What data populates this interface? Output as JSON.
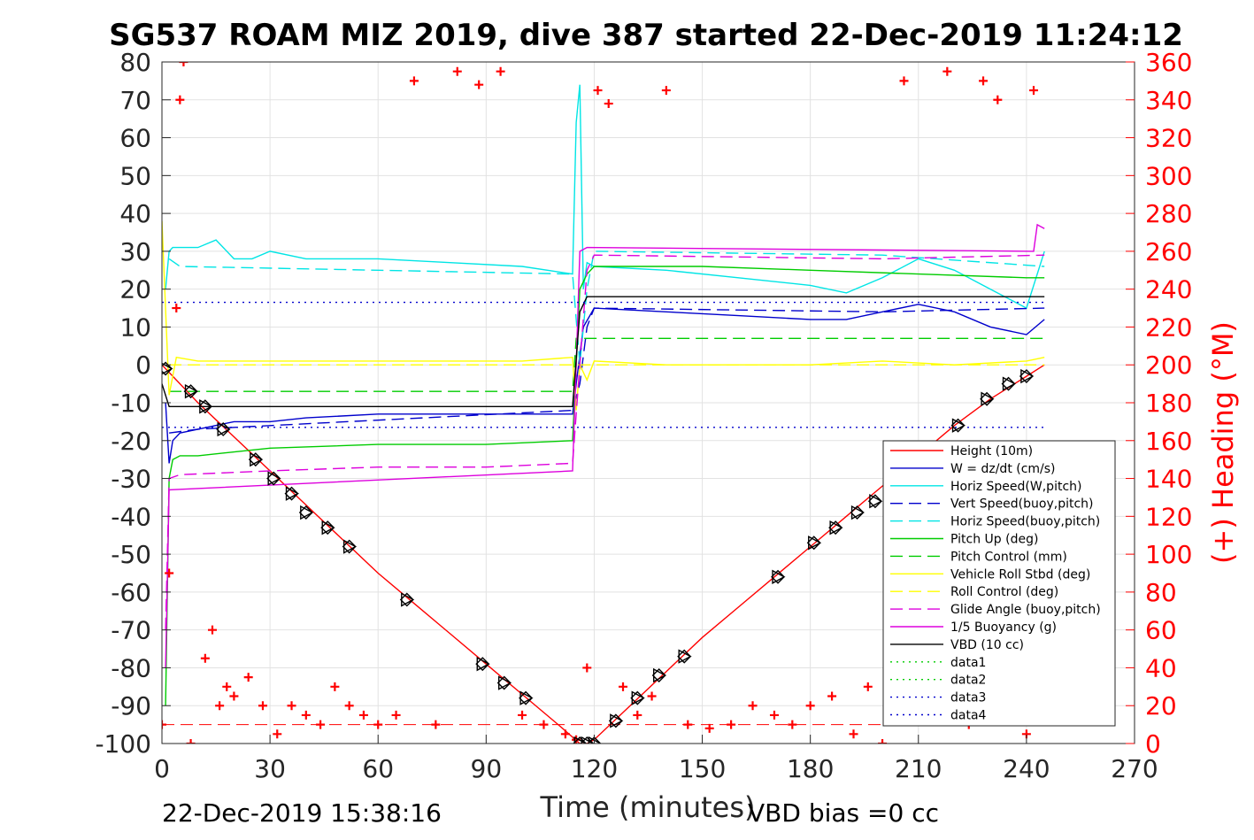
{
  "chart_data": {
    "type": "line",
    "title": "SG537 ROAM MIZ 2019, dive 387 started 22-Dec-2019 11:24:12",
    "xlabel": "Time (minutes)",
    "ylabel_left": "",
    "ylabel_right": "(+) Heading (°M)",
    "footer_left": "22-Dec-2019 15:38:16",
    "footer_right": "VBD bias =0 cc",
    "xlim": [
      0,
      270
    ],
    "ylim_left": [
      -100,
      80
    ],
    "ylim_right": [
      0,
      360
    ],
    "xticks": [
      0,
      30,
      60,
      90,
      120,
      150,
      180,
      210,
      240,
      270
    ],
    "yticks_left": [
      80,
      70,
      60,
      50,
      40,
      30,
      20,
      10,
      0,
      -10,
      -20,
      -30,
      -40,
      -50,
      -60,
      -70,
      -80,
      -90,
      -100
    ],
    "yticks_right": [
      360,
      340,
      320,
      300,
      280,
      260,
      240,
      220,
      200,
      180,
      160,
      140,
      120,
      100,
      80,
      60,
      40,
      20,
      0
    ],
    "grid": true,
    "legend_position": "lower-right",
    "series": [
      {
        "name": "Height (10m)",
        "color": "#ff0000",
        "style": "solid",
        "x": [
          0,
          10,
          20,
          30,
          40,
          50,
          60,
          70,
          80,
          90,
          100,
          110,
          116,
          118,
          120,
          130,
          140,
          150,
          160,
          170,
          180,
          190,
          200,
          210,
          220,
          230,
          240,
          245
        ],
        "y": [
          0,
          -10,
          -19,
          -28,
          -37,
          -46,
          -55,
          -63,
          -71,
          -79,
          -87,
          -95,
          -100,
          -100,
          -99,
          -90,
          -81,
          -72,
          -64,
          -56,
          -48,
          -40,
          -32,
          -24,
          -16,
          -9,
          -3,
          0
        ]
      },
      {
        "name": "W = dz/dt (cm/s)",
        "color": "#0000cc",
        "style": "solid",
        "x": [
          1,
          2,
          3,
          5,
          10,
          20,
          30,
          40,
          60,
          80,
          100,
          114,
          115,
          117,
          120,
          140,
          160,
          180,
          190,
          200,
          210,
          220,
          230,
          240,
          245
        ],
        "y": [
          -10,
          -26,
          -20,
          -18,
          -17,
          -15,
          -15,
          -14,
          -13,
          -13,
          -13,
          -13,
          -5,
          10,
          15,
          14,
          13,
          12,
          12,
          14,
          16,
          14,
          10,
          8,
          12
        ]
      },
      {
        "name": "Horiz Speed(W,pitch)",
        "color": "#00e5e5",
        "style": "solid",
        "x": [
          1,
          2,
          3,
          10,
          15,
          20,
          25,
          30,
          40,
          60,
          80,
          100,
          114,
          115,
          116,
          117,
          118,
          120,
          140,
          160,
          180,
          190,
          200,
          210,
          220,
          230,
          240,
          245
        ],
        "y": [
          20,
          30,
          31,
          31,
          33,
          28,
          28,
          30,
          28,
          28,
          27,
          26,
          24,
          64,
          74,
          20,
          27,
          26,
          25,
          23,
          21,
          19,
          23,
          28,
          25,
          20,
          15,
          30
        ]
      },
      {
        "name": "Vert Speed(buoy,pitch)",
        "color": "#0000cc",
        "style": "dashed",
        "x": [
          2,
          10,
          114,
          116,
          118,
          120,
          200,
          245
        ],
        "y": [
          -18,
          -17,
          -12,
          -5,
          10,
          15,
          14,
          15
        ]
      },
      {
        "name": "Horiz Speed(buoy,pitch)",
        "color": "#00e5e5",
        "style": "dashed",
        "x": [
          2,
          5,
          60,
          114,
          116,
          118,
          120,
          200,
          245
        ],
        "y": [
          28,
          26,
          25,
          24,
          0,
          20,
          30,
          29,
          26
        ]
      },
      {
        "name": "Pitch Up (deg)",
        "color": "#00cc00",
        "style": "solid",
        "x": [
          1,
          2,
          3,
          5,
          10,
          30,
          60,
          90,
          114,
          116,
          118,
          120,
          150,
          180,
          210,
          240,
          245
        ],
        "y": [
          -90,
          -30,
          -25,
          -24,
          -24,
          -22,
          -21,
          -21,
          -20,
          20,
          24,
          26,
          26,
          25,
          24,
          23,
          23
        ]
      },
      {
        "name": "Pitch Control (mm)",
        "color": "#00cc00",
        "style": "dashed",
        "x": [
          2,
          114,
          115,
          245
        ],
        "y": [
          -7,
          -7,
          7,
          7
        ]
      },
      {
        "name": "Vehicle Roll Stbd (deg)",
        "color": "#ffff00",
        "style": "solid",
        "x": [
          0,
          2,
          4,
          10,
          20,
          40,
          60,
          80,
          100,
          114,
          115,
          116,
          118,
          120,
          140,
          160,
          180,
          200,
          220,
          240,
          245
        ],
        "y": [
          38,
          -8,
          2,
          1,
          1,
          1,
          1,
          1,
          1,
          2,
          -12,
          0,
          -4,
          1,
          0,
          0,
          0,
          1,
          0,
          1,
          2
        ]
      },
      {
        "name": "Roll Control (deg)",
        "color": "#ffff00",
        "style": "dashed",
        "x": [
          2,
          114,
          115,
          245
        ],
        "y": [
          0,
          0,
          0,
          0
        ]
      },
      {
        "name": "Glide Angle (buoy,pitch)",
        "color": "#dd00dd",
        "style": "dashed",
        "x": [
          1,
          2,
          5,
          30,
          60,
          90,
          114,
          116,
          118,
          120,
          200,
          245
        ],
        "y": [
          -70,
          -30,
          -29,
          -28,
          -27,
          -27,
          -26,
          0,
          25,
          29,
          28,
          29
        ]
      },
      {
        "name": "1/5 Buoyancy (g)",
        "color": "#dd00dd",
        "style": "solid",
        "x": [
          1,
          2,
          114,
          115,
          116,
          118,
          242,
          243,
          245
        ],
        "y": [
          -80,
          -33,
          -28,
          0,
          30,
          31,
          30,
          37,
          36
        ]
      },
      {
        "name": "VBD (10 cc)",
        "color": "#000000",
        "style": "solid",
        "x": [
          0,
          2,
          3,
          114,
          116,
          118,
          245
        ],
        "y": [
          -5,
          -11,
          -11,
          -11,
          14,
          18,
          18
        ]
      },
      {
        "name": "data1",
        "color": "#00cc00",
        "style": "dotted",
        "x": [],
        "y": []
      },
      {
        "name": "data2",
        "color": "#00cc00",
        "style": "dotted",
        "x": [],
        "y": []
      },
      {
        "name": "data3",
        "color": "#0000cc",
        "style": "dotted",
        "x": [
          0,
          245
        ],
        "y": [
          16.5,
          16.5
        ]
      },
      {
        "name": "data4",
        "color": "#0000cc",
        "style": "dotted",
        "x": [
          0,
          245
        ],
        "y": [
          -16.5,
          -16.5
        ]
      }
    ],
    "heading": {
      "color": "#ff0000",
      "axis": "right",
      "marker": "+",
      "x": [
        0,
        2,
        4,
        5,
        6,
        8,
        12,
        14,
        16,
        18,
        20,
        24,
        28,
        32,
        36,
        40,
        44,
        48,
        52,
        56,
        60,
        65,
        70,
        76,
        82,
        88,
        94,
        100,
        106,
        112,
        115,
        118,
        121,
        124,
        128,
        132,
        136,
        140,
        146,
        152,
        158,
        164,
        170,
        175,
        180,
        186,
        192,
        196,
        200,
        206,
        212,
        218,
        224,
        228,
        232,
        236,
        240,
        242
      ],
      "y": [
        10,
        90,
        230,
        340,
        360,
        0,
        45,
        60,
        20,
        30,
        25,
        35,
        20,
        5,
        20,
        15,
        10,
        30,
        20,
        15,
        10,
        15,
        350,
        10,
        355,
        348,
        355,
        15,
        10,
        5,
        2,
        40,
        345,
        338,
        30,
        15,
        25,
        345,
        10,
        8,
        10,
        20,
        15,
        10,
        20,
        25,
        5,
        30,
        0,
        350,
        18,
        355,
        10,
        350,
        340,
        12,
        5,
        345
      ]
    },
    "heading_ref_line": {
      "y": 10,
      "x": [
        0,
        245
      ],
      "color": "#ff0000",
      "style": "dashed"
    },
    "position_markers": {
      "color": "#000000",
      "x": [
        1,
        8,
        12,
        17,
        26,
        31,
        36,
        40,
        46,
        52,
        68,
        89,
        95,
        101,
        116,
        118,
        120,
        126,
        132,
        138,
        145,
        171,
        181,
        187,
        193,
        198,
        221,
        229,
        235,
        240
      ],
      "y": [
        -1,
        -7,
        -11,
        -17,
        -25,
        -30,
        -34,
        -39,
        -43,
        -48,
        -62,
        -79,
        -84,
        -88,
        -100,
        -100,
        -100,
        -94,
        -88,
        -82,
        -77,
        -56,
        -47,
        -43,
        -39,
        -36,
        -16,
        -9,
        -5,
        -3
      ]
    }
  }
}
